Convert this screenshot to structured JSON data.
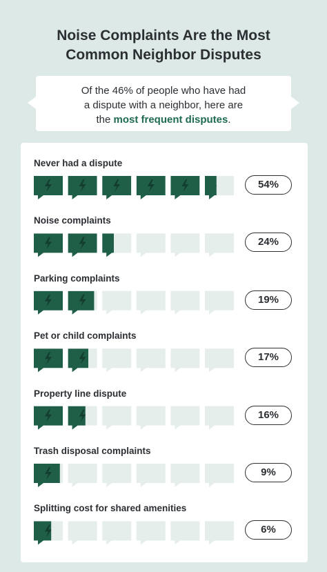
{
  "title_line1": "Noise Complaints Are the Most",
  "title_line2": "Common Neighbor Disputes",
  "callout": {
    "line1": "Of the 46% of people who have had",
    "line2": "a dispute with a neighbor, here are",
    "line3_prefix": "the ",
    "line3_highlight": "most frequent disputes",
    "line3_suffix": "."
  },
  "colors": {
    "filled": "#1f5f48",
    "empty": "#e6eeeb",
    "bolt": "#133d2e"
  },
  "chart_data": {
    "type": "bar",
    "categories": [
      "Never had a dispute",
      "Noise complaints",
      "Parking complaints",
      "Pet or child complaints",
      "Property line dispute",
      "Trash disposal complaints",
      "Splitting cost for shared amenities"
    ],
    "values": [
      54,
      24,
      19,
      17,
      16,
      9,
      6
    ],
    "value_labels": [
      "54%",
      "24%",
      "19%",
      "17%",
      "16%",
      "9%",
      "6%"
    ],
    "ylim": [
      0,
      60
    ],
    "icon_unit": 10,
    "icon_count": 6
  }
}
